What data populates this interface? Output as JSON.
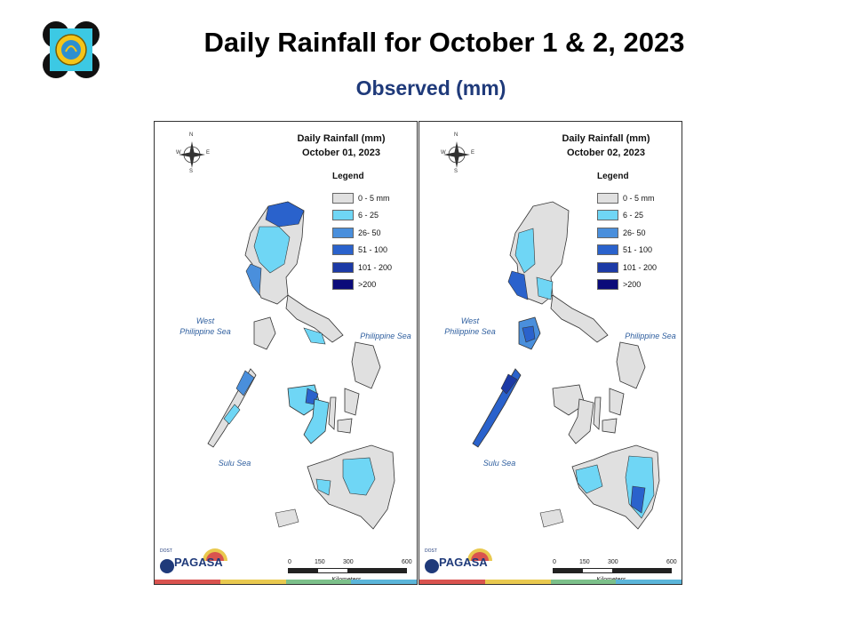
{
  "header": {
    "title": "Daily Rainfall for October 1 & 2, 2023",
    "subtitle": "Observed (mm)"
  },
  "logo_icon": "dost-seal-icon",
  "legend": {
    "title": "Legend",
    "items": [
      {
        "label": "0 - 5 mm",
        "color": "#e0e0e0"
      },
      {
        "label": "6 - 25",
        "color": "#6fd6f5"
      },
      {
        "label": "26- 50",
        "color": "#4a8fdc"
      },
      {
        "label": "51 - 100",
        "color": "#2a62cc"
      },
      {
        "label": "101 - 200",
        "color": "#1c3aa6"
      },
      {
        "label": ">200",
        "color": "#0b0b7a"
      }
    ]
  },
  "seas": {
    "west": "West\nPhilippine Sea",
    "east": "Philippine Sea",
    "sulu": "Sulu Sea"
  },
  "compass": {
    "n": "N",
    "s": "S",
    "e": "E",
    "w": "W"
  },
  "scale": {
    "ticks": [
      "0",
      "150",
      "300",
      "600"
    ],
    "unit": "Kilometers"
  },
  "agency": {
    "name": "PAGASA",
    "tagline": "DOST",
    "small": "PAGASA"
  },
  "maps": [
    {
      "heading": "Daily Rainfall (mm)",
      "date": "October 01, 2023"
    },
    {
      "heading": "Daily Rainfall (mm)",
      "date": "October 02, 2023"
    }
  ],
  "stripe_colors": [
    "#d9534f",
    "#e9c94f",
    "#7cc08a",
    "#5bb5d9"
  ]
}
